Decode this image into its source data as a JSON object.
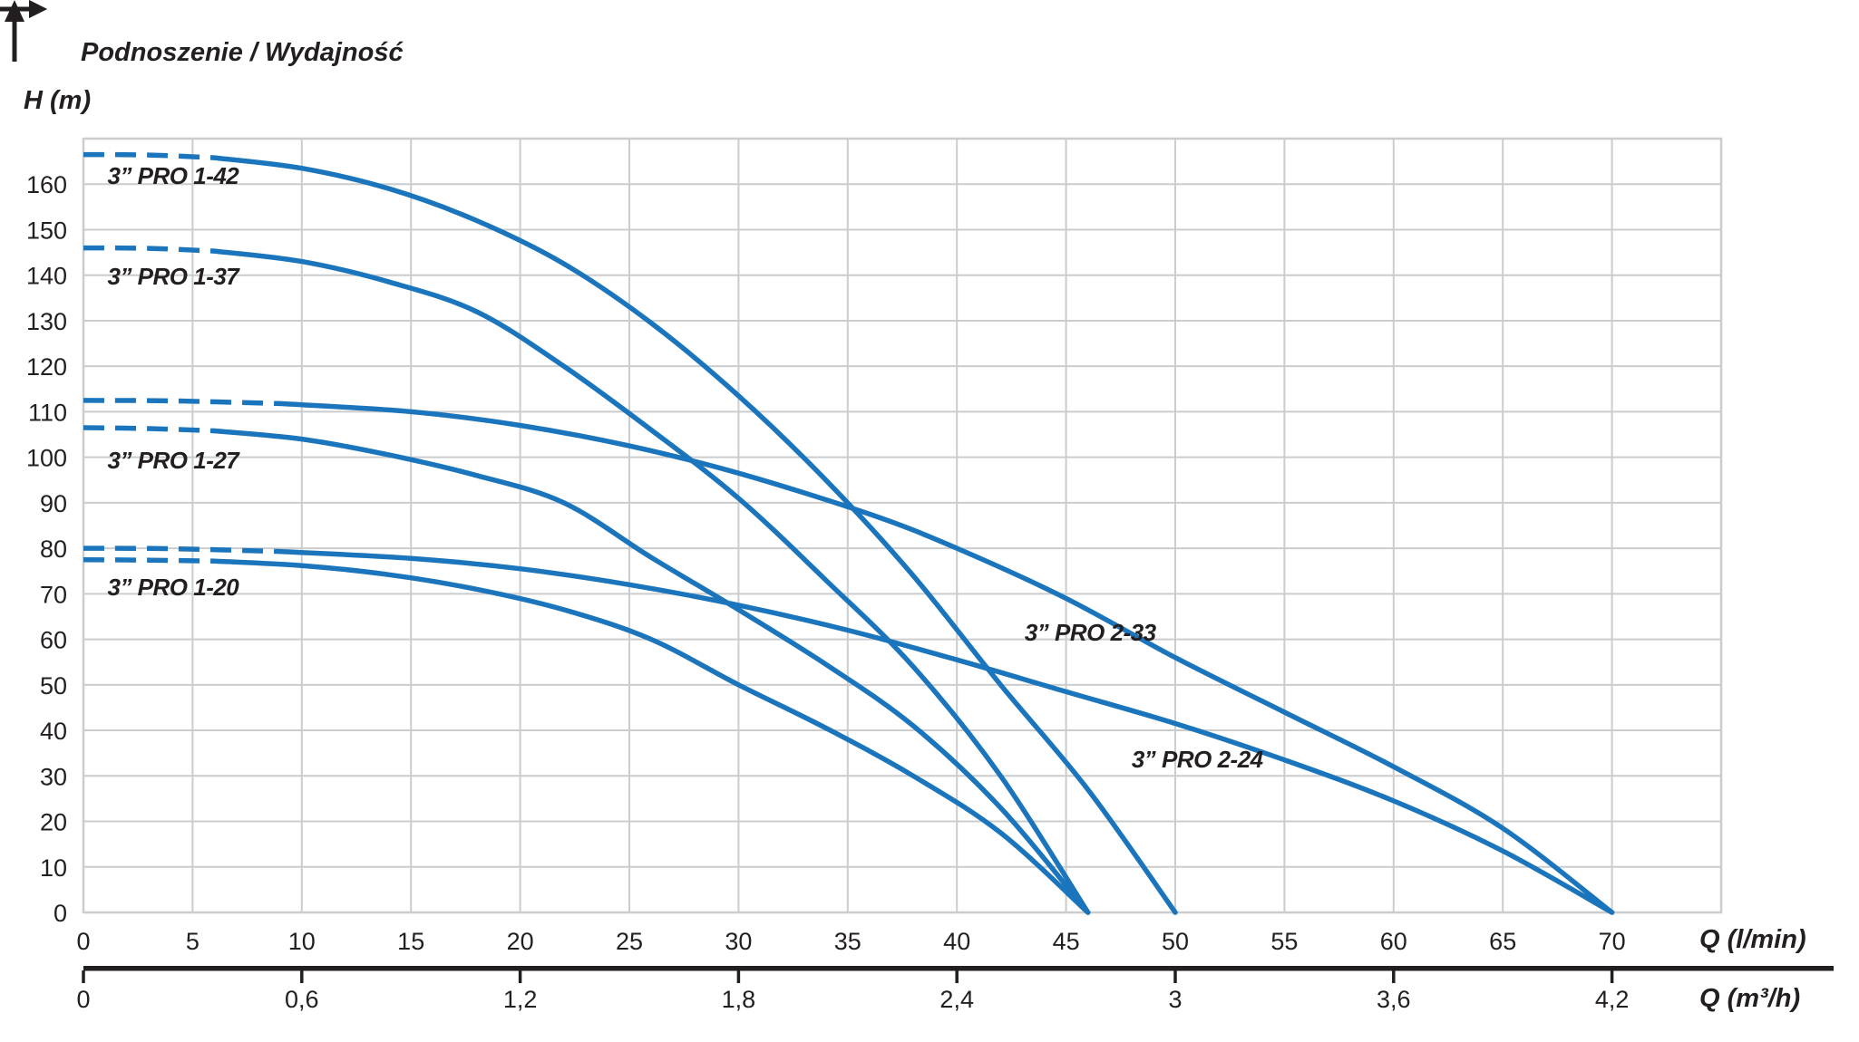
{
  "header": {
    "title": "Podnoszenie / Wydajność",
    "y_axis_unit": "H (m)"
  },
  "colors": {
    "curve_blue": "#1b75bc",
    "grid_gray": "#cbccce",
    "text_dark": "#231f20",
    "secondary_axis_black": "#231f20",
    "background": "#ffffff"
  },
  "icons": {
    "y_axis_arrow": "up-arrow-icon",
    "x_axis_arrow_lpm": "right-arrow-icon",
    "x_axis_arrow_m3h": "right-arrow-icon"
  },
  "chart_data": {
    "type": "line",
    "title": "Podnoszenie / Wydajność",
    "ylabel": "H (m)",
    "xlabel": "Q (l/min)",
    "xlabel_secondary": "Q (m³/h)",
    "xlim": [
      0,
      75
    ],
    "ylim": [
      0,
      170
    ],
    "grid": true,
    "x_grid_step_lpm": 5,
    "y_grid_step_m": 10,
    "y_ticks": [
      0,
      10,
      20,
      30,
      40,
      50,
      60,
      70,
      80,
      90,
      100,
      110,
      120,
      130,
      140,
      150,
      160
    ],
    "x_ticks_lpm": [
      0,
      5,
      10,
      15,
      20,
      25,
      30,
      35,
      40,
      45,
      50,
      55,
      60,
      65,
      70
    ],
    "x_ticks_m3h": [
      {
        "value": 0,
        "label": "0"
      },
      {
        "value": 0.6,
        "label": "0,6"
      },
      {
        "value": 1.2,
        "label": "1,2"
      },
      {
        "value": 1.8,
        "label": "1,8"
      },
      {
        "value": 2.4,
        "label": "2,4"
      },
      {
        "value": 3,
        "label": "3"
      },
      {
        "value": 3.6,
        "label": "3,6"
      },
      {
        "value": 4.2,
        "label": "4,2"
      }
    ],
    "m3h_per_lpm_ratio": 16.6667,
    "series": [
      {
        "name": "3” PRO 1-42",
        "dash_until_q": 6,
        "label_anchor": {
          "q": 1.1,
          "h": 161.8
        },
        "points": [
          [
            0,
            166.5
          ],
          [
            3,
            166.4
          ],
          [
            6,
            165.8
          ],
          [
            10,
            163.5
          ],
          [
            14,
            159
          ],
          [
            18,
            152
          ],
          [
            22,
            142.5
          ],
          [
            26,
            129.5
          ],
          [
            30,
            113.5
          ],
          [
            34,
            95
          ],
          [
            38,
            74
          ],
          [
            42,
            50
          ],
          [
            46,
            27
          ],
          [
            50,
            0
          ]
        ]
      },
      {
        "name": "3” PRO 1-37",
        "dash_until_q": 6,
        "label_anchor": {
          "q": 1.1,
          "h": 139.7
        },
        "points": [
          [
            0,
            146
          ],
          [
            3,
            145.9
          ],
          [
            6,
            145.3
          ],
          [
            10,
            143
          ],
          [
            14,
            138.5
          ],
          [
            18,
            132
          ],
          [
            22,
            120
          ],
          [
            26,
            106
          ],
          [
            30,
            91
          ],
          [
            34,
            73
          ],
          [
            38,
            54
          ],
          [
            42,
            30
          ],
          [
            46,
            0
          ]
        ]
      },
      {
        "name": "3” PRO 1-27",
        "dash_until_q": 6,
        "label_anchor": {
          "q": 1.1,
          "h": 99.3
        },
        "points": [
          [
            0,
            106.5
          ],
          [
            3,
            106.3
          ],
          [
            6,
            105.8
          ],
          [
            10,
            104
          ],
          [
            14,
            100.5
          ],
          [
            18,
            96
          ],
          [
            22,
            90
          ],
          [
            26,
            78
          ],
          [
            30,
            66.5
          ],
          [
            34,
            54.5
          ],
          [
            38,
            41
          ],
          [
            42,
            23
          ],
          [
            46,
            0
          ]
        ]
      },
      {
        "name": "3” PRO 1-20",
        "dash_until_q": 6,
        "label_anchor": {
          "q": 1.1,
          "h": 71.5
        },
        "points": [
          [
            0,
            77.5
          ],
          [
            3,
            77.4
          ],
          [
            6,
            77.2
          ],
          [
            10,
            76.2
          ],
          [
            14,
            74.2
          ],
          [
            18,
            71
          ],
          [
            22,
            66.5
          ],
          [
            26,
            60
          ],
          [
            30,
            50
          ],
          [
            34,
            40.5
          ],
          [
            38,
            30
          ],
          [
            42,
            17.5
          ],
          [
            46,
            0
          ]
        ]
      },
      {
        "name": "3” PRO 2-33",
        "dash_until_q": 9,
        "label_anchor": {
          "q": 43.1,
          "h": 61.5
        },
        "points": [
          [
            0,
            112.5
          ],
          [
            4,
            112.4
          ],
          [
            9,
            111.8
          ],
          [
            15,
            110
          ],
          [
            20,
            107
          ],
          [
            25,
            102.5
          ],
          [
            30,
            96.5
          ],
          [
            36,
            87.5
          ],
          [
            40,
            80
          ],
          [
            45,
            69
          ],
          [
            50,
            56
          ],
          [
            55,
            44
          ],
          [
            60,
            32
          ],
          [
            65,
            18.5
          ],
          [
            70,
            0
          ]
        ]
      },
      {
        "name": "3” PRO 2-24",
        "dash_until_q": 9,
        "label_anchor": {
          "q": 48.0,
          "h": 33.6
        },
        "points": [
          [
            0,
            80
          ],
          [
            4,
            79.9
          ],
          [
            9,
            79.3
          ],
          [
            15,
            77.8
          ],
          [
            20,
            75.5
          ],
          [
            25,
            72
          ],
          [
            30,
            67.5
          ],
          [
            35,
            62
          ],
          [
            40,
            55.5
          ],
          [
            45,
            48.5
          ],
          [
            50,
            41.5
          ],
          [
            55,
            33.5
          ],
          [
            60,
            24.5
          ],
          [
            65,
            13.5
          ],
          [
            70,
            0
          ]
        ]
      }
    ]
  }
}
